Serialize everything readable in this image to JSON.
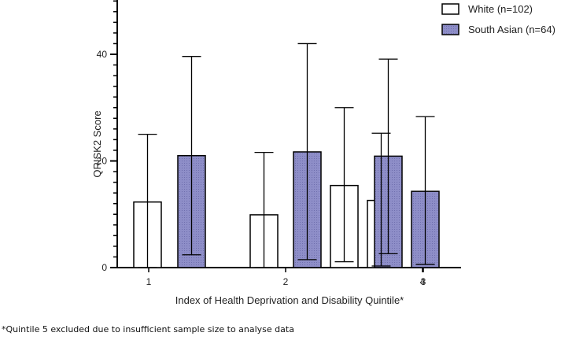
{
  "chart_data": {
    "type": "bar",
    "categories": [
      "1",
      "2",
      "3",
      "4"
    ],
    "series": [
      {
        "name": "White (n=102)",
        "values": [
          12.3,
          9.9,
          12.6,
          15.4
        ],
        "err_low": [
          0,
          0,
          0.3,
          1.1
        ],
        "err_high": [
          25.0,
          21.6,
          25.2,
          30.0
        ],
        "color": "#ffffff"
      },
      {
        "name": "South Asian (n=64)",
        "values": [
          21.0,
          21.7,
          14.3,
          20.9
        ],
        "err_low": [
          2.4,
          1.5,
          0.6,
          2.6
        ],
        "err_high": [
          39.6,
          42.0,
          28.3,
          39.1
        ],
        "color": "#8e8ec8"
      }
    ],
    "xlabel": "Index of Health Deprivation and Disability Quintile*",
    "ylabel": "QRISK2 Score",
    "ylim": [
      0,
      50
    ],
    "yticks": [
      0,
      20,
      40
    ],
    "legend_position": "top-right",
    "grid": false
  },
  "footnote": "*Quintile 5 excluded due to insufficient sample size to analyse data"
}
